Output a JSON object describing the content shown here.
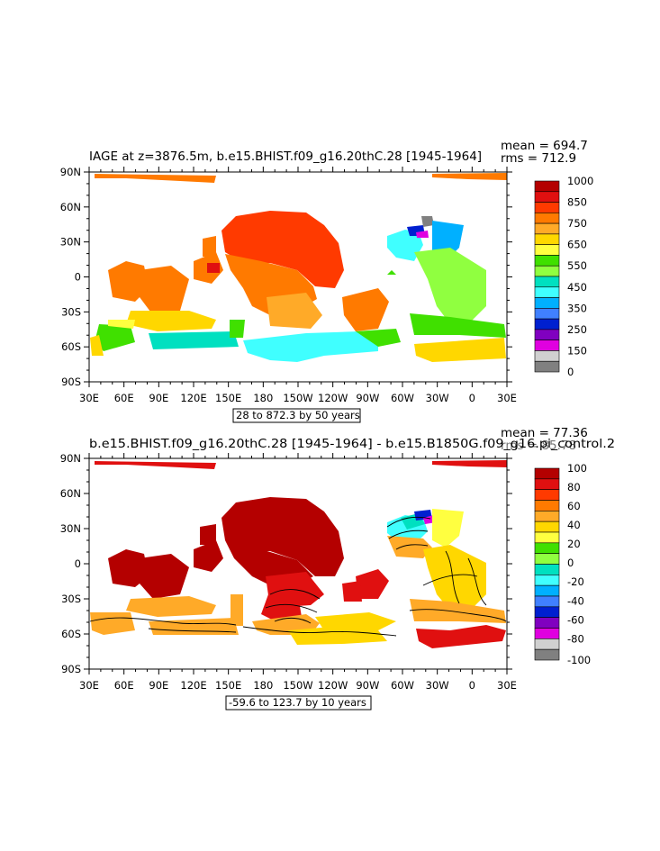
{
  "chart_data": [
    {
      "type": "heatmap",
      "title": "IAGE at z=3876.5m, b.e15.BHIST.f09_g16.20thC.28 [1945-1964]",
      "stats": [
        "mean = 694.7",
        "rms = 712.9"
      ],
      "x_ticks": [
        "30E",
        "60E",
        "90E",
        "120E",
        "150E",
        "180",
        "150W",
        "120W",
        "90W",
        "60W",
        "30W",
        "0",
        "30E"
      ],
      "y_ticks": [
        "90N",
        "60N",
        "30N",
        "0",
        "30S",
        "60S",
        "90S"
      ],
      "contour_info": "28 to 872.3 by 50 years",
      "colorbar": {
        "labels": [
          "1000",
          "850",
          "750",
          "650",
          "550",
          "450",
          "350",
          "250",
          "150",
          "0"
        ],
        "colors": [
          "#b40000",
          "#e01010",
          "#ff3a00",
          "#ff7a00",
          "#ffaa28",
          "#ffd700",
          "#ffff40",
          "#40e000",
          "#90ff40",
          "#00e0c0",
          "#40ffff",
          "#00b0ff",
          "#4080ff",
          "#0020d0",
          "#8000c0",
          "#e000e0",
          "#d0d0d0",
          "#808080"
        ]
      },
      "grid": false
    },
    {
      "type": "heatmap",
      "title": "b.e15.BHIST.f09_g16.20thC.28 [1945-1964] - b.e15.B1850G.f09_g16.pi_control.2",
      "stats": [
        "mean = 77.36",
        "rms = 85.78"
      ],
      "x_ticks": [
        "30E",
        "60E",
        "90E",
        "120E",
        "150E",
        "180",
        "150W",
        "120W",
        "90W",
        "60W",
        "30W",
        "0",
        "30E"
      ],
      "y_ticks": [
        "90N",
        "60N",
        "30N",
        "0",
        "30S",
        "60S",
        "90S"
      ],
      "contour_info": "-59.6 to 123.7 by 10 years",
      "colorbar": {
        "labels": [
          "100",
          "80",
          "60",
          "40",
          "20",
          "0",
          "-20",
          "-40",
          "-60",
          "-80",
          "-100"
        ],
        "colors": [
          "#b40000",
          "#e01010",
          "#ff3a00",
          "#ff7a00",
          "#ffaa28",
          "#ffd700",
          "#ffff40",
          "#40e000",
          "#90ff40",
          "#00e0c0",
          "#40ffff",
          "#00b0ff",
          "#4080ff",
          "#0020d0",
          "#8000c0",
          "#e000e0",
          "#d0d0d0",
          "#808080"
        ]
      },
      "grid": false
    }
  ]
}
